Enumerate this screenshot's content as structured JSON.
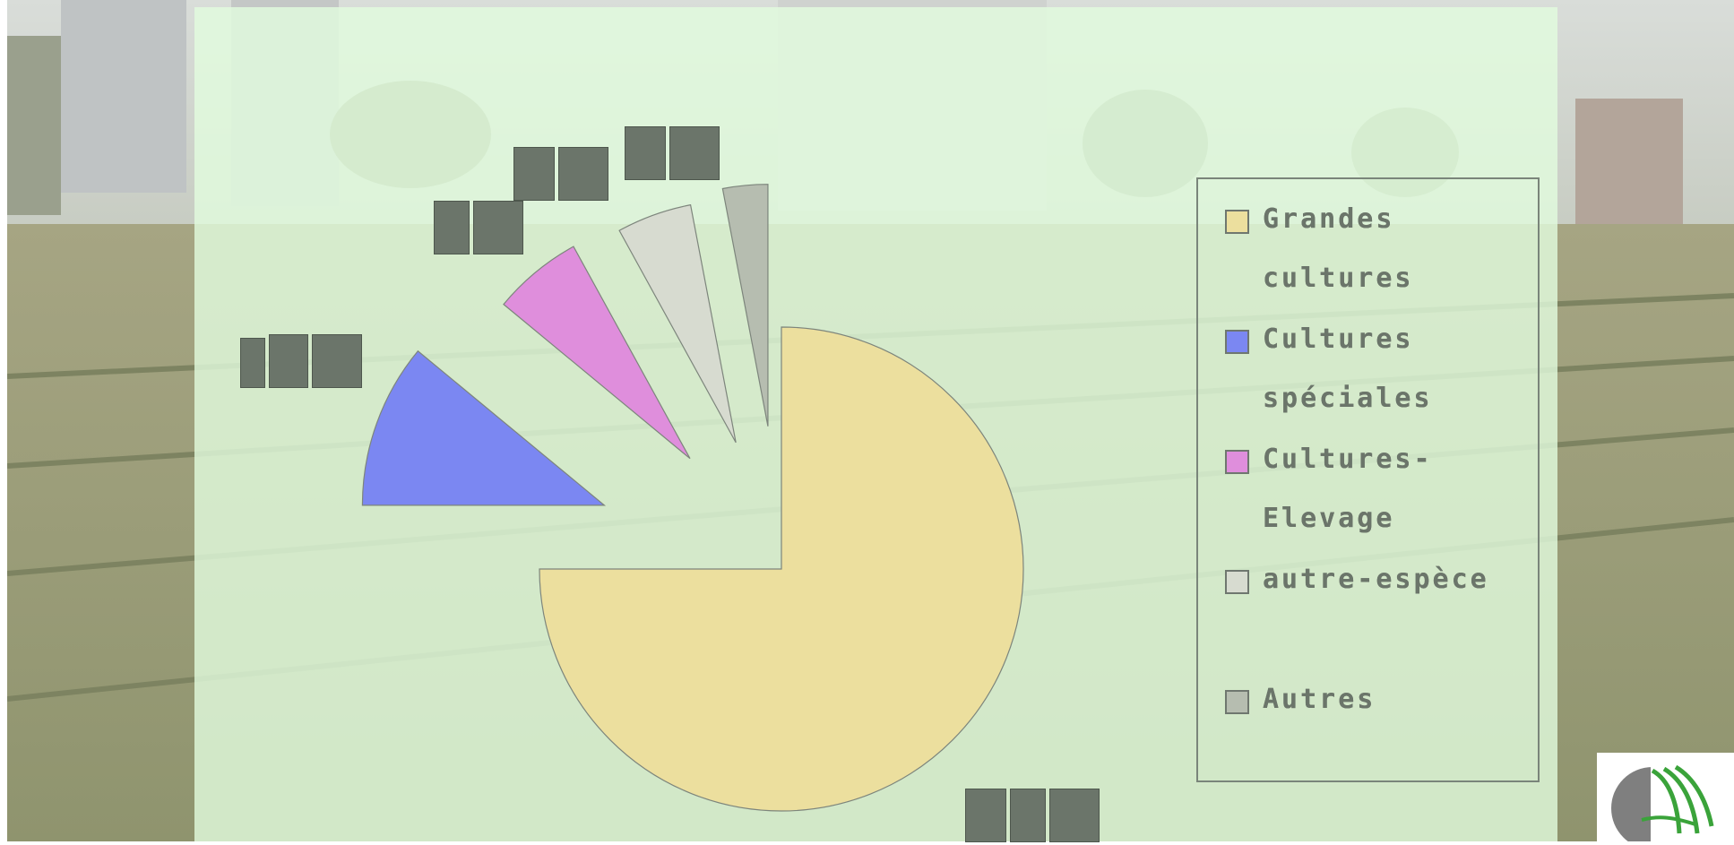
{
  "chart_data": {
    "type": "pie",
    "title": "",
    "slices": [
      {
        "name": "Grandes cultures",
        "value": 75,
        "color": "#ecdf9e"
      },
      {
        "name": "Cultures spéciales",
        "value": 11,
        "color": "#7b87f2"
      },
      {
        "name": "Cultures-Elevage",
        "value": 6,
        "color": "#df8edc"
      },
      {
        "name": "autre-espèce",
        "value": 5,
        "color": "#d7dbd0"
      },
      {
        "name": "Autres",
        "value": 3,
        "color": "#b6bdb0"
      }
    ],
    "data_labels": [
      "75",
      "11",
      "6",
      "5",
      "3"
    ],
    "legend_position": "right",
    "exploded": true,
    "start": "12 o'clock, clockwise"
  },
  "background": {
    "image": "photo-of-vegetable-field-with-buildings",
    "overlay_color": "#e2fcde"
  },
  "logo": {
    "icon": "agricultural-logo-icon",
    "colors": [
      "#7f7f7f",
      "#3aa33a"
    ]
  }
}
